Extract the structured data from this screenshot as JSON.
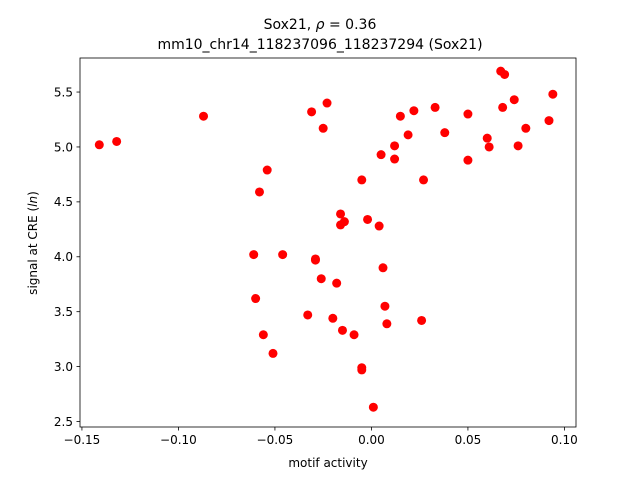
{
  "chart_data": {
    "type": "scatter",
    "title_line1_prefix": "Sox21, ",
    "title_rho_symbol": "ρ",
    "title_rho_value": " = 0.36",
    "title_line2": "mm10_chr14_118237096_118237294 (Sox21)",
    "xlabel": "motif activity",
    "ylabel_prefix": "signal at CRE (",
    "ylabel_italic": "ln",
    "ylabel_suffix": ")",
    "xlim": [
      -0.151,
      0.106
    ],
    "ylim": [
      2.45,
      5.81
    ],
    "xticks": [
      {
        "value": -0.15,
        "label": "−0.15"
      },
      {
        "value": -0.1,
        "label": "−0.10"
      },
      {
        "value": -0.05,
        "label": "−0.05"
      },
      {
        "value": 0.0,
        "label": "0.00"
      },
      {
        "value": 0.05,
        "label": "0.05"
      },
      {
        "value": 0.1,
        "label": "0.10"
      }
    ],
    "yticks": [
      {
        "value": 2.5,
        "label": "2.5"
      },
      {
        "value": 3.0,
        "label": "3.0"
      },
      {
        "value": 3.5,
        "label": "3.5"
      },
      {
        "value": 4.0,
        "label": "4.0"
      },
      {
        "value": 4.5,
        "label": "4.5"
      },
      {
        "value": 5.0,
        "label": "5.0"
      },
      {
        "value": 5.5,
        "label": "5.5"
      }
    ],
    "grid": false,
    "marker_color": "#ff0000",
    "points": [
      {
        "x": -0.141,
        "y": 5.02
      },
      {
        "x": -0.132,
        "y": 5.05
      },
      {
        "x": -0.087,
        "y": 5.28
      },
      {
        "x": -0.061,
        "y": 4.02
      },
      {
        "x": -0.06,
        "y": 3.62
      },
      {
        "x": -0.058,
        "y": 4.59
      },
      {
        "x": -0.056,
        "y": 3.29
      },
      {
        "x": -0.054,
        "y": 4.79
      },
      {
        "x": -0.051,
        "y": 3.12
      },
      {
        "x": -0.046,
        "y": 4.02
      },
      {
        "x": -0.033,
        "y": 3.47
      },
      {
        "x": -0.031,
        "y": 5.32
      },
      {
        "x": -0.029,
        "y": 3.97
      },
      {
        "x": -0.029,
        "y": 3.98
      },
      {
        "x": -0.026,
        "y": 3.8
      },
      {
        "x": -0.025,
        "y": 5.17
      },
      {
        "x": -0.023,
        "y": 5.4
      },
      {
        "x": -0.02,
        "y": 3.44
      },
      {
        "x": -0.018,
        "y": 3.76
      },
      {
        "x": -0.016,
        "y": 4.39
      },
      {
        "x": -0.016,
        "y": 4.29
      },
      {
        "x": -0.015,
        "y": 3.33
      },
      {
        "x": -0.014,
        "y": 4.32
      },
      {
        "x": -0.009,
        "y": 3.29
      },
      {
        "x": -0.005,
        "y": 2.97
      },
      {
        "x": -0.005,
        "y": 2.99
      },
      {
        "x": -0.005,
        "y": 4.7
      },
      {
        "x": -0.002,
        "y": 4.34
      },
      {
        "x": 0.001,
        "y": 2.63
      },
      {
        "x": 0.004,
        "y": 4.28
      },
      {
        "x": 0.005,
        "y": 4.93
      },
      {
        "x": 0.006,
        "y": 3.9
      },
      {
        "x": 0.007,
        "y": 3.55
      },
      {
        "x": 0.008,
        "y": 3.39
      },
      {
        "x": 0.012,
        "y": 5.01
      },
      {
        "x": 0.012,
        "y": 4.89
      },
      {
        "x": 0.015,
        "y": 5.28
      },
      {
        "x": 0.019,
        "y": 5.11
      },
      {
        "x": 0.022,
        "y": 5.33
      },
      {
        "x": 0.026,
        "y": 3.42
      },
      {
        "x": 0.027,
        "y": 4.7
      },
      {
        "x": 0.033,
        "y": 5.36
      },
      {
        "x": 0.038,
        "y": 5.13
      },
      {
        "x": 0.05,
        "y": 4.88
      },
      {
        "x": 0.05,
        "y": 5.3
      },
      {
        "x": 0.06,
        "y": 5.08
      },
      {
        "x": 0.061,
        "y": 5.0
      },
      {
        "x": 0.067,
        "y": 5.69
      },
      {
        "x": 0.068,
        "y": 5.36
      },
      {
        "x": 0.069,
        "y": 5.66
      },
      {
        "x": 0.074,
        "y": 5.43
      },
      {
        "x": 0.076,
        "y": 5.01
      },
      {
        "x": 0.08,
        "y": 5.17
      },
      {
        "x": 0.092,
        "y": 5.24
      },
      {
        "x": 0.094,
        "y": 5.48
      }
    ]
  }
}
